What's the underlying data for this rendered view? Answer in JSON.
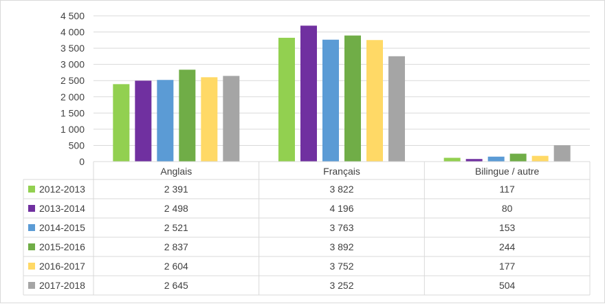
{
  "chart_data": {
    "type": "bar",
    "categories": [
      "Anglais",
      "Français",
      "Bilingue / autre"
    ],
    "series": [
      {
        "name": "2012-2013",
        "color": "#92d050",
        "values": [
          2391,
          3822,
          117
        ],
        "labels": [
          "2 391",
          "3 822",
          "117"
        ]
      },
      {
        "name": "2013-2014",
        "color": "#7030a0",
        "values": [
          2498,
          4196,
          80
        ],
        "labels": [
          "2 498",
          "4 196",
          "80"
        ]
      },
      {
        "name": "2014-2015",
        "color": "#5b9bd5",
        "values": [
          2521,
          3763,
          153
        ],
        "labels": [
          "2 521",
          "3 763",
          "153"
        ]
      },
      {
        "name": "2015-2016",
        "color": "#70ad47",
        "values": [
          2837,
          3892,
          244
        ],
        "labels": [
          "2 837",
          "3 892",
          "244"
        ]
      },
      {
        "name": "2016-2017",
        "color": "#ffd966",
        "values": [
          2604,
          3752,
          177
        ],
        "labels": [
          "2 604",
          "3 752",
          "177"
        ]
      },
      {
        "name": "2017-2018",
        "color": "#a5a5a5",
        "values": [
          2645,
          3252,
          504
        ],
        "labels": [
          "2 645",
          "3 252",
          "504"
        ]
      }
    ],
    "ylim": [
      0,
      4500
    ],
    "yticks": [
      0,
      500,
      1000,
      1500,
      2000,
      2500,
      3000,
      3500,
      4000,
      4500
    ],
    "ytick_labels": [
      "0",
      "500",
      "1 000",
      "1 500",
      "2 000",
      "2 500",
      "3 000",
      "3 500",
      "4 000",
      "4 500"
    ],
    "grid": true,
    "legend": "data-table-below"
  }
}
